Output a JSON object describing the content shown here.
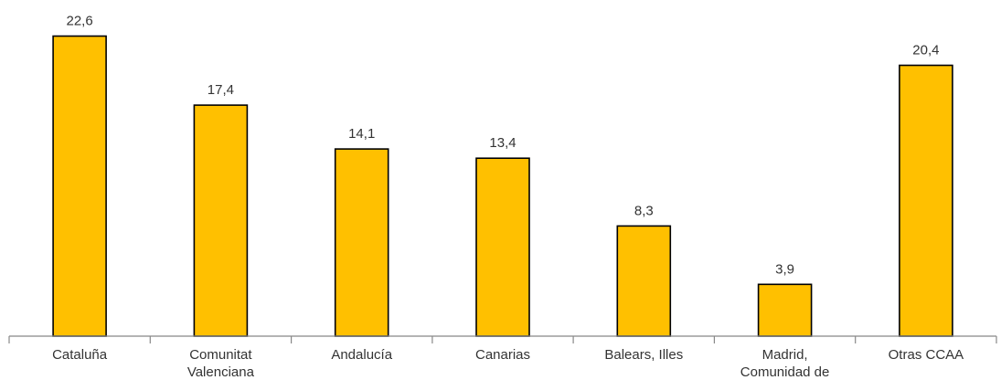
{
  "chart_data": {
    "type": "bar",
    "categories": [
      [
        "Cataluña"
      ],
      [
        "Comunitat",
        "Valenciana"
      ],
      [
        "Andalucía"
      ],
      [
        "Canarias"
      ],
      [
        "Balears, Illes"
      ],
      [
        "Madrid,",
        "Comunidad de"
      ],
      [
        "Otras CCAA"
      ]
    ],
    "values": [
      22.6,
      17.4,
      14.1,
      13.4,
      8.3,
      3.9,
      20.4
    ],
    "value_labels": [
      "22,6",
      "17,4",
      "14,1",
      "13,4",
      "8,3",
      "3,9",
      "20,4"
    ],
    "title": "",
    "xlabel": "",
    "ylabel": "",
    "ylim": [
      0,
      22.6
    ],
    "grid": false,
    "bar_color": "#FFC000",
    "bar_edge_color": "#000000"
  }
}
